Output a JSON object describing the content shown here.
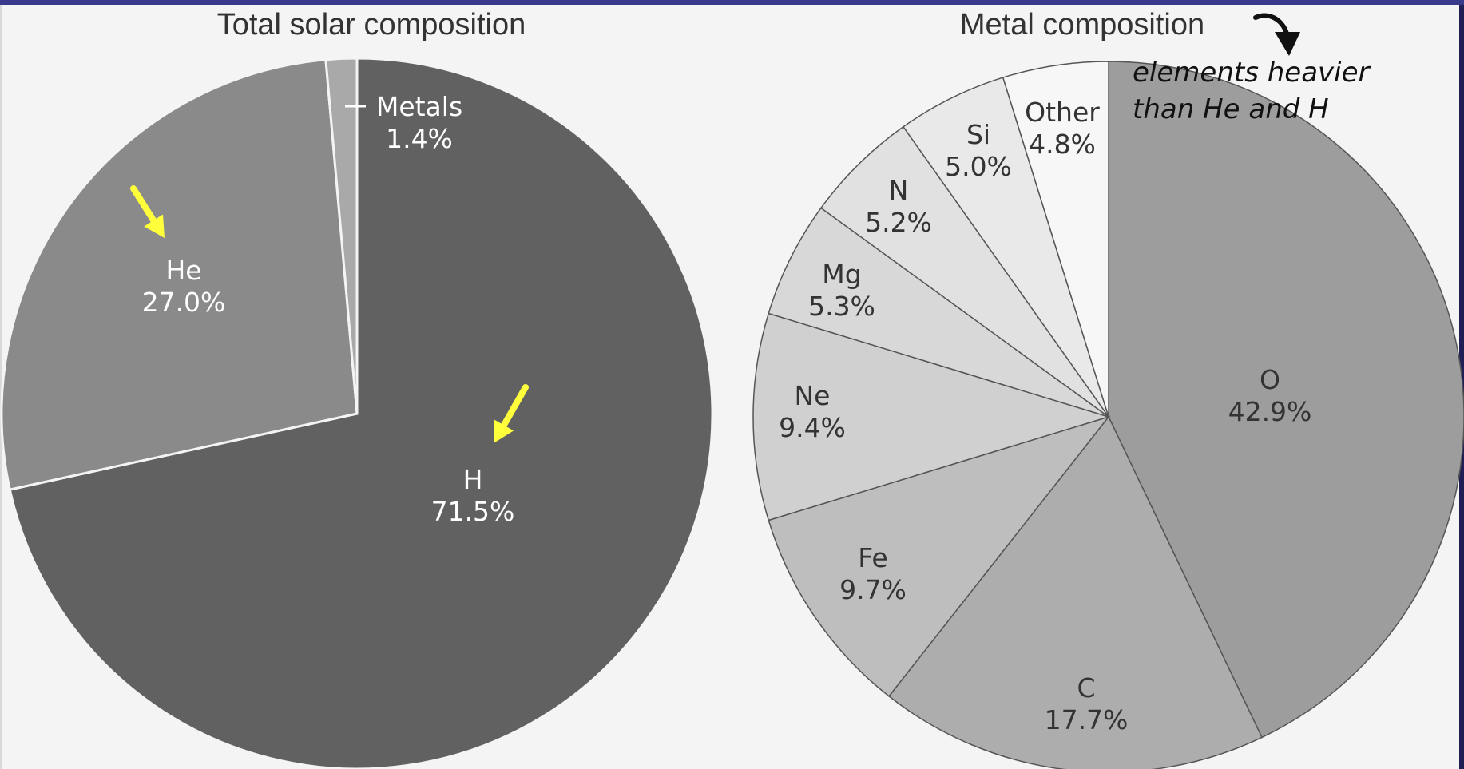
{
  "chart_data": [
    {
      "type": "pie",
      "title": "Total solar composition",
      "slices": [
        {
          "label": "H",
          "value_label": "71.5%",
          "value": 71.5,
          "color": "#616161",
          "text_color": "#ffffff"
        },
        {
          "label": "He",
          "value_label": "27.0%",
          "value": 27.0,
          "color": "#8a8a8a",
          "text_color": "#ffffff"
        },
        {
          "label": "Metals",
          "value_label": "1.4%",
          "value": 1.4,
          "color": "#a9a9a9",
          "text_color": "#ffffff"
        }
      ],
      "annotation_arrows": [
        "He",
        "H"
      ],
      "arrow_color": "#ffff3c"
    },
    {
      "type": "pie",
      "title": "Metal composition",
      "slices": [
        {
          "label": "O",
          "value_label": "42.9%",
          "value": 42.9,
          "color": "#9d9d9d",
          "text_color": "#333333"
        },
        {
          "label": "C",
          "value_label": "17.7%",
          "value": 17.7,
          "color": "#adadad",
          "text_color": "#333333"
        },
        {
          "label": "Fe",
          "value_label": "9.7%",
          "value": 9.7,
          "color": "#bebebe",
          "text_color": "#333333"
        },
        {
          "label": "Ne",
          "value_label": "9.4%",
          "value": 9.4,
          "color": "#d0d0d0",
          "text_color": "#333333"
        },
        {
          "label": "Mg",
          "value_label": "5.3%",
          "value": 5.3,
          "color": "#d8d8d8",
          "text_color": "#333333"
        },
        {
          "label": "N",
          "value_label": "5.2%",
          "value": 5.2,
          "color": "#e1e1e1",
          "text_color": "#333333"
        },
        {
          "label": "Si",
          "value_label": "5.0%",
          "value": 5.0,
          "color": "#e9e9e9",
          "text_color": "#333333"
        },
        {
          "label": "Other",
          "value_label": "4.8%",
          "value": 4.8,
          "color": "#f7f7f7",
          "text_color": "#333333"
        }
      ],
      "handwritten_note": [
        "elements heavier",
        "than He and H"
      ]
    }
  ]
}
